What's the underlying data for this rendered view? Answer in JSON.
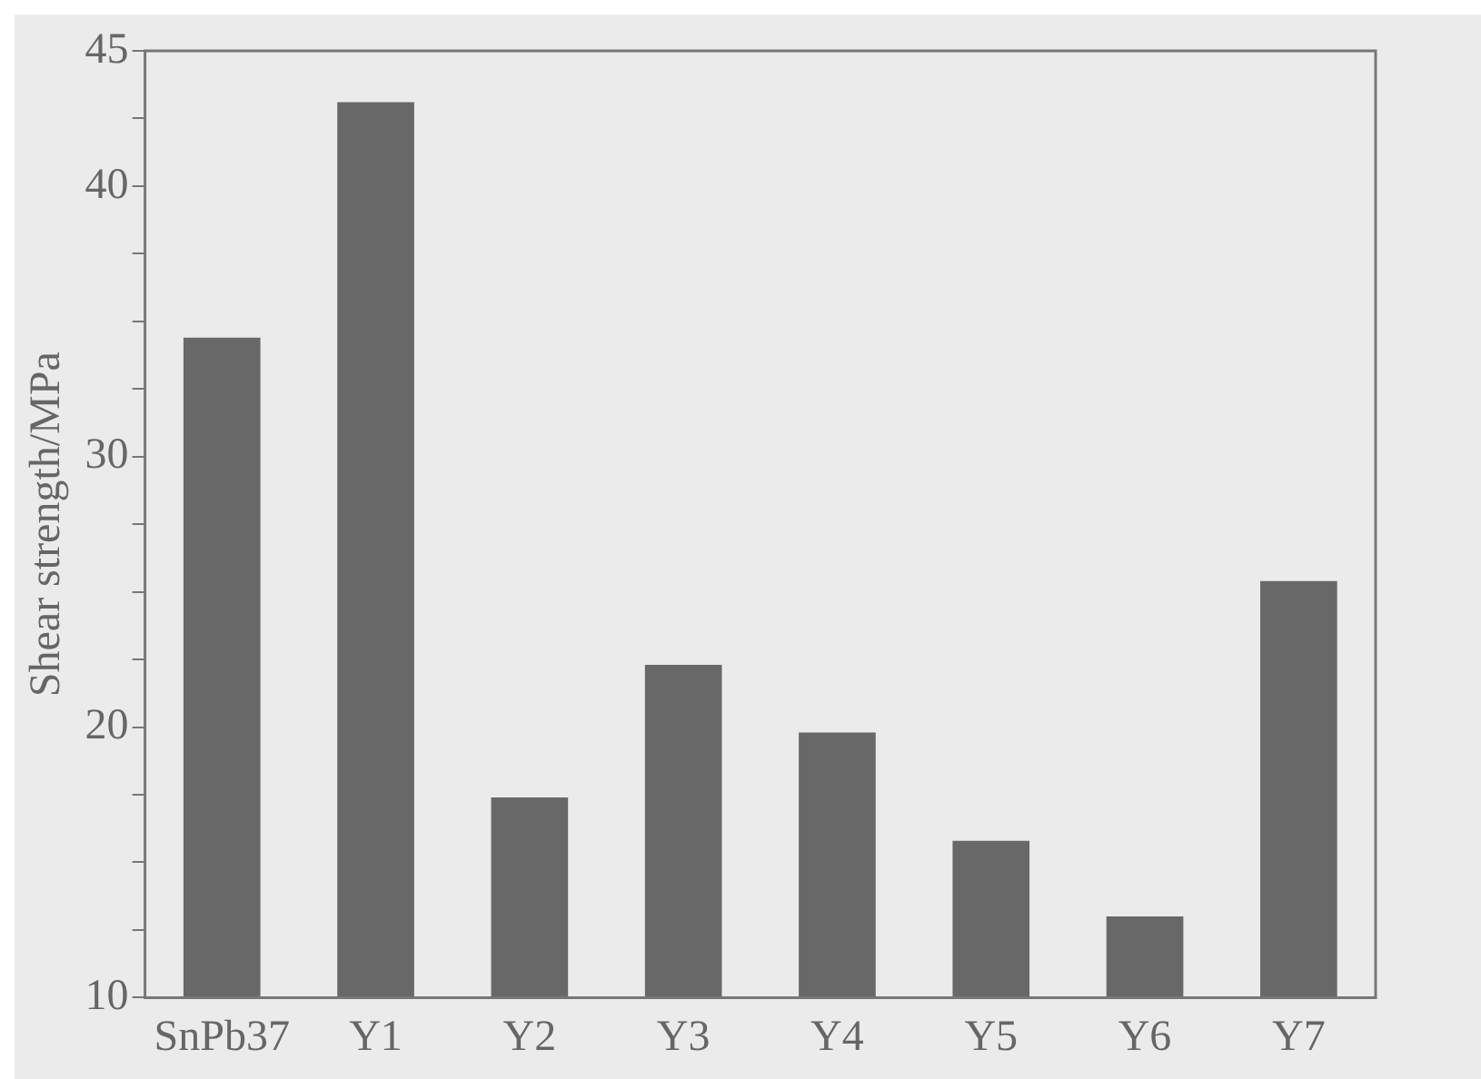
{
  "chart_data": {
    "type": "bar",
    "ylabel": "Shear strength/MPa",
    "categories": [
      "SnPb37",
      "Y1",
      "Y2",
      "Y3",
      "Y4",
      "Y5",
      "Y6",
      "Y7"
    ],
    "values": [
      34.4,
      43.1,
      17.4,
      22.3,
      19.8,
      15.8,
      13.0,
      25.4
    ],
    "color": "#686868",
    "ylim": [
      10,
      45
    ],
    "yticks": [
      10,
      {
        "value": 12.5,
        "label": null
      },
      {
        "value": 15,
        "label": null
      },
      {
        "value": 17.5,
        "label": null
      },
      20,
      {
        "value": 22.5,
        "label": null
      },
      {
        "value": 25,
        "label": null
      },
      {
        "value": 27.5,
        "label": null
      },
      30,
      {
        "value": 32.5,
        "label": null
      },
      {
        "value": 35,
        "label": null
      },
      {
        "value": 37.5,
        "label": null
      },
      40,
      {
        "value": 42.5,
        "label": null
      },
      45
    ],
    "grid": false,
    "legend": false
  }
}
